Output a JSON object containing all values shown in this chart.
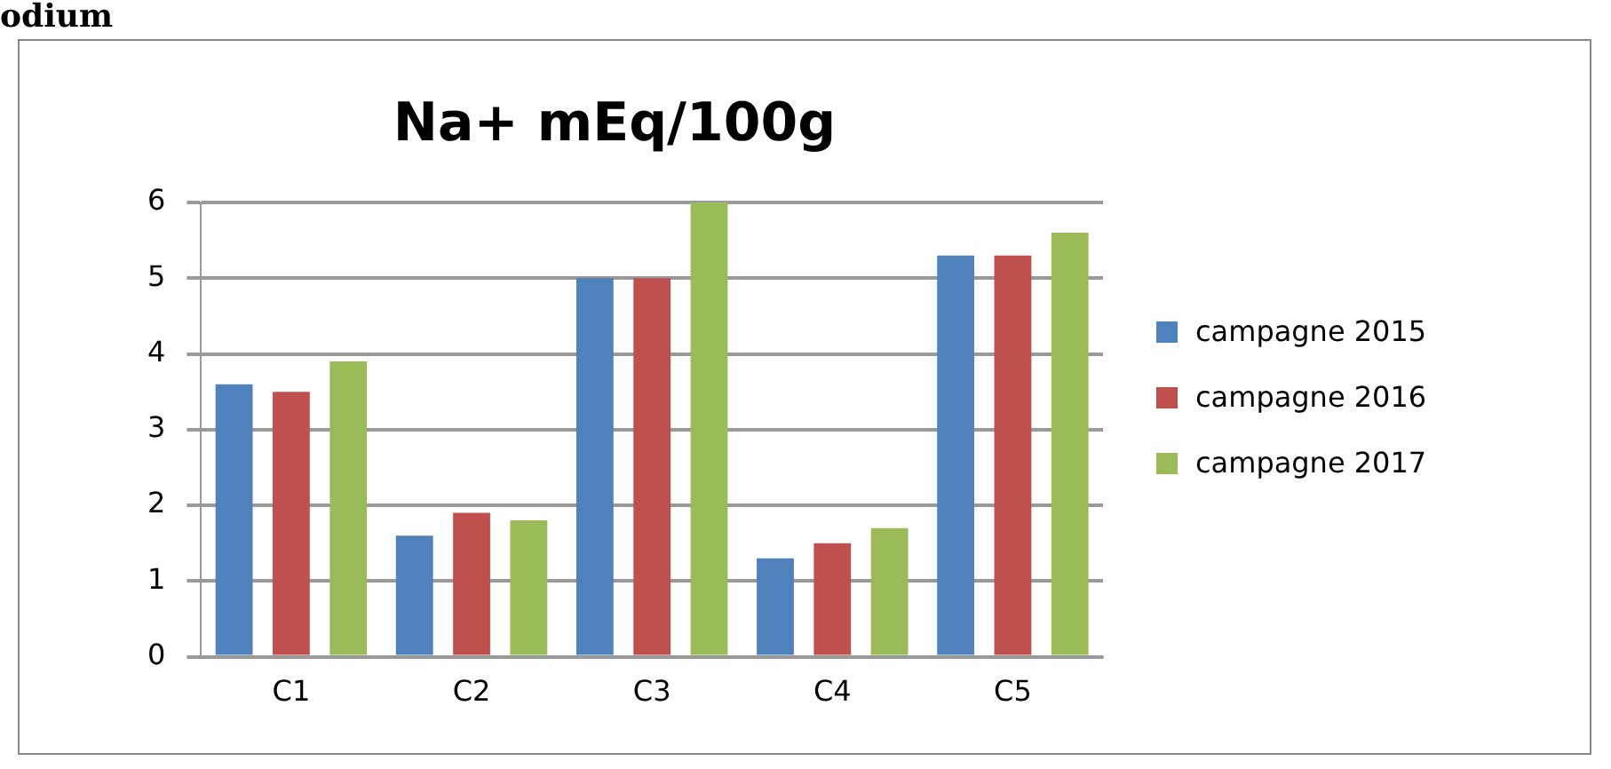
{
  "chart_data": {
    "type": "bar",
    "title": "Na+ mEq/100g",
    "annotations": [
      "odium"
    ],
    "categories": [
      "C1",
      "C2",
      "C3",
      "C4",
      "C5"
    ],
    "series": [
      {
        "name": "campagne 2015",
        "color": "#4f81bd",
        "values": [
          3.6,
          1.6,
          5.0,
          1.3,
          5.3
        ]
      },
      {
        "name": "campagne 2016",
        "color": "#c0504d",
        "values": [
          3.5,
          1.9,
          5.0,
          1.5,
          5.3
        ]
      },
      {
        "name": "campagne 2017",
        "color": "#9bbb59",
        "values": [
          3.9,
          1.8,
          6.0,
          1.7,
          5.6
        ]
      }
    ],
    "ylim": [
      0,
      6
    ],
    "yticks": [
      0,
      1,
      2,
      3,
      4,
      5,
      6
    ],
    "grid": "y",
    "legend": "right"
  }
}
